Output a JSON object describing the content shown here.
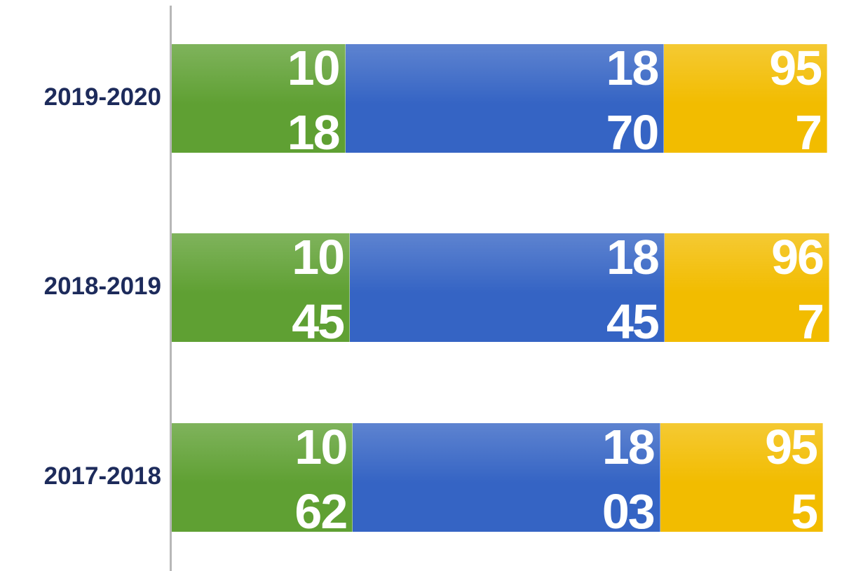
{
  "chart_data": {
    "type": "bar",
    "orientation": "horizontal",
    "stacked": true,
    "categories": [
      "2019-2020",
      "2018-2019",
      "2017-2018"
    ],
    "series": [
      {
        "color": "#5fa033",
        "values": [
          1018,
          1045,
          1062
        ]
      },
      {
        "color": "#3564c4",
        "values": [
          1870,
          1845,
          1803
        ]
      },
      {
        "color": "#f2bc00",
        "values": [
          957,
          967,
          955
        ]
      }
    ]
  }
}
